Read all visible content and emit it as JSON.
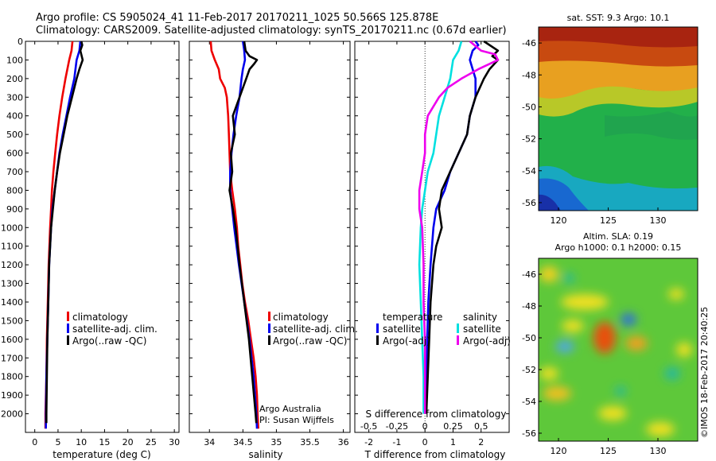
{
  "header": {
    "line1": "Argo profile: CS 5905024_41 11-Feb-2017 20170211_1025 50.566S 125.878E",
    "line2": "Climatology: CARS2009. Satellite-adjusted climatology: synTS_20170211.nc (0.67d earlier)"
  },
  "chart_data": [
    {
      "type": "line",
      "name": "temperature-profile",
      "xlabel": "temperature (deg C)",
      "ylabel": "",
      "xlim": [
        -2,
        31
      ],
      "ylim": [
        2100,
        0
      ],
      "xticks": [
        0,
        5,
        10,
        15,
        20,
        25,
        30
      ],
      "yticks": [
        0,
        100,
        200,
        300,
        400,
        500,
        600,
        700,
        800,
        900,
        1000,
        1100,
        1200,
        1300,
        1400,
        1500,
        1600,
        1700,
        1800,
        1900,
        2000
      ],
      "legend": [
        "climatology",
        "satellite-adj. clim.",
        "Argo(..raw -QC)"
      ],
      "series": [
        {
          "name": "climatology",
          "color": "#ee0000",
          "depth": [
            0,
            50,
            100,
            200,
            300,
            400,
            500,
            600,
            700,
            800,
            900,
            1000,
            1200,
            1400,
            1600,
            1800,
            2000,
            2080
          ],
          "values": [
            8.1,
            7.9,
            7.4,
            6.6,
            5.9,
            5.3,
            4.8,
            4.4,
            4.0,
            3.7,
            3.5,
            3.3,
            3.0,
            2.8,
            2.6,
            2.5,
            2.3,
            2.3
          ]
        },
        {
          "name": "satellite-adj. clim.",
          "color": "#0000ee",
          "depth": [
            0,
            50,
            100,
            200,
            300,
            400,
            500,
            600,
            700,
            800,
            900,
            1000,
            1200,
            1400,
            1600,
            1800,
            2000,
            2080
          ],
          "values": [
            9.8,
            9.6,
            9.0,
            8.5,
            7.6,
            6.8,
            6.0,
            5.3,
            4.8,
            4.3,
            3.8,
            3.5,
            3.1,
            2.9,
            2.7,
            2.5,
            2.4,
            2.4
          ]
        },
        {
          "name": "Argo(..raw -QC)",
          "color": "#000000",
          "depth": [
            0,
            20,
            50,
            100,
            150,
            200,
            300,
            400,
            500,
            600,
            700,
            800,
            900,
            1000,
            1200,
            1400,
            1600,
            1800,
            2000,
            2050
          ],
          "values": [
            10.0,
            10.2,
            9.8,
            10.3,
            9.6,
            9.0,
            8.0,
            7.0,
            6.2,
            5.4,
            4.8,
            4.3,
            3.9,
            3.5,
            3.1,
            2.9,
            2.7,
            2.6,
            2.5,
            2.5
          ]
        }
      ]
    },
    {
      "type": "line",
      "name": "salinity-profile",
      "xlabel": "salinity",
      "xlim": [
        33.7,
        36.1
      ],
      "ylim": [
        2100,
        0
      ],
      "xticks": [
        34,
        34.5,
        35,
        35.5,
        36
      ],
      "legend": [
        "climatology",
        "satellite-adj. clim.",
        "Argo(..raw -QC)"
      ],
      "annotation": [
        "Argo Australia",
        "PI: Susan Wijffels"
      ],
      "series": [
        {
          "name": "climatology",
          "color": "#ee0000",
          "depth": [
            0,
            50,
            100,
            150,
            200,
            250,
            300,
            400,
            500,
            600,
            700,
            800,
            900,
            1000,
            1100,
            1200,
            1300,
            1400,
            1500,
            1600,
            1700,
            1800,
            1900,
            2000,
            2080
          ],
          "values": [
            34.02,
            34.03,
            34.08,
            34.14,
            34.16,
            34.23,
            34.26,
            34.28,
            34.29,
            34.3,
            34.31,
            34.34,
            34.38,
            34.41,
            34.43,
            34.46,
            34.49,
            34.53,
            34.58,
            34.62,
            34.66,
            34.69,
            34.71,
            34.72,
            34.73
          ]
        },
        {
          "name": "satellite-adj. clim.",
          "color": "#0000ee",
          "depth": [
            0,
            50,
            100,
            150,
            200,
            300,
            400,
            500,
            600,
            700,
            800,
            900,
            1000,
            1200,
            1400,
            1600,
            1800,
            2000,
            2080
          ],
          "values": [
            34.5,
            34.52,
            34.53,
            34.5,
            34.48,
            34.45,
            34.4,
            34.36,
            34.33,
            34.31,
            34.31,
            34.34,
            34.37,
            34.44,
            34.52,
            34.6,
            34.66,
            34.7,
            34.71
          ]
        },
        {
          "name": "Argo(..raw -QC)",
          "color": "#000000",
          "depth": [
            0,
            50,
            80,
            100,
            120,
            150,
            200,
            300,
            400,
            500,
            600,
            700,
            800,
            900,
            1000,
            1200,
            1400,
            1600,
            1800,
            2000,
            2050
          ],
          "values": [
            34.52,
            34.54,
            34.6,
            34.71,
            34.67,
            34.6,
            34.55,
            34.45,
            34.35,
            34.38,
            34.32,
            34.34,
            34.3,
            34.35,
            34.39,
            34.45,
            34.52,
            34.59,
            34.64,
            34.69,
            34.7
          ]
        }
      ]
    },
    {
      "type": "line",
      "name": "difference-profile",
      "xlabel": "T difference from climatology",
      "xlabel_top": "S difference from climatology",
      "xlim": [
        -2.5,
        3.0
      ],
      "ylim": [
        2100,
        0
      ],
      "xticks": [
        -2,
        -1,
        0,
        1,
        2
      ],
      "xticks_S": [
        "-0.5",
        "-0.25",
        "0",
        "0.25",
        "0.5"
      ],
      "legend_temperature": [
        "temperature",
        "satellite",
        "Argo(-adj)"
      ],
      "legend_salinity": [
        "salinity",
        "satellite",
        "Argo(-adj)"
      ],
      "series": [
        {
          "name": "temperature satellite",
          "color": "#0000ee",
          "depth": [
            0,
            20,
            50,
            100,
            200,
            300,
            400,
            500,
            600,
            700,
            800,
            900,
            1000,
            1200,
            1400,
            1600,
            1800,
            2000
          ],
          "values": [
            1.8,
            1.9,
            1.7,
            1.6,
            1.8,
            1.8,
            1.6,
            1.5,
            1.2,
            0.9,
            0.7,
            0.4,
            0.3,
            0.2,
            0.12,
            0.08,
            0.07,
            0.05
          ]
        },
        {
          "name": "temperature Argo(-adj)",
          "color": "#000000",
          "depth": [
            0,
            50,
            80,
            100,
            150,
            200,
            300,
            400,
            500,
            600,
            700,
            800,
            900,
            1000,
            1100,
            1200,
            1400,
            1600,
            1800,
            2000
          ],
          "values": [
            2.1,
            2.6,
            2.4,
            2.6,
            2.3,
            2.1,
            1.8,
            1.6,
            1.5,
            1.2,
            0.9,
            0.6,
            0.5,
            0.6,
            0.4,
            0.3,
            0.2,
            0.15,
            0.1,
            0.05
          ]
        },
        {
          "name": "salinity satellite",
          "color": "#00e0e0",
          "depth": [
            0,
            50,
            100,
            200,
            300,
            400,
            500,
            600,
            700,
            800,
            900,
            1000,
            1200,
            1400,
            1600,
            1800,
            2000
          ],
          "values": [
            1.3,
            1.2,
            1.0,
            0.9,
            0.7,
            0.5,
            0.4,
            0.3,
            0.1,
            0.0,
            -0.1,
            -0.15,
            -0.2,
            -0.15,
            -0.1,
            -0.05,
            -0.05
          ]
        },
        {
          "name": "salinity Argo(-adj)",
          "color": "#ee00ee",
          "depth": [
            0,
            50,
            70,
            100,
            150,
            200,
            250,
            300,
            400,
            500,
            600,
            700,
            800,
            900,
            1000,
            1200,
            1400,
            1600,
            1800,
            2000
          ],
          "values": [
            1.6,
            2.0,
            2.5,
            2.6,
            1.9,
            1.3,
            0.8,
            0.5,
            0.1,
            0.0,
            0.0,
            -0.1,
            -0.2,
            -0.2,
            -0.1,
            -0.05,
            -0.05,
            0.0,
            0.0,
            0.0
          ]
        }
      ]
    },
    {
      "type": "heatmap",
      "name": "sat-sst-map",
      "title": "sat. SST: 9.3 Argo: 10.1",
      "xticks": [
        120,
        125,
        130
      ],
      "yticks": [
        -46,
        -48,
        -50,
        -52,
        -54,
        -56
      ],
      "xlim": [
        118,
        134
      ],
      "ylim": [
        -56.5,
        -45
      ]
    },
    {
      "type": "heatmap",
      "name": "altim-sla-map",
      "title": "Altim. SLA: 0.19",
      "subtitle": "Argo h1000: 0.1 h2000: 0.15",
      "xticks": [
        120,
        125,
        130
      ],
      "yticks": [
        -46,
        -48,
        -50,
        -52,
        -54,
        -56
      ],
      "xlim": [
        118,
        134
      ],
      "ylim": [
        -56.5,
        -45
      ]
    }
  ],
  "copyright": "©IMOS 18-Feb-2017 20:40:25"
}
